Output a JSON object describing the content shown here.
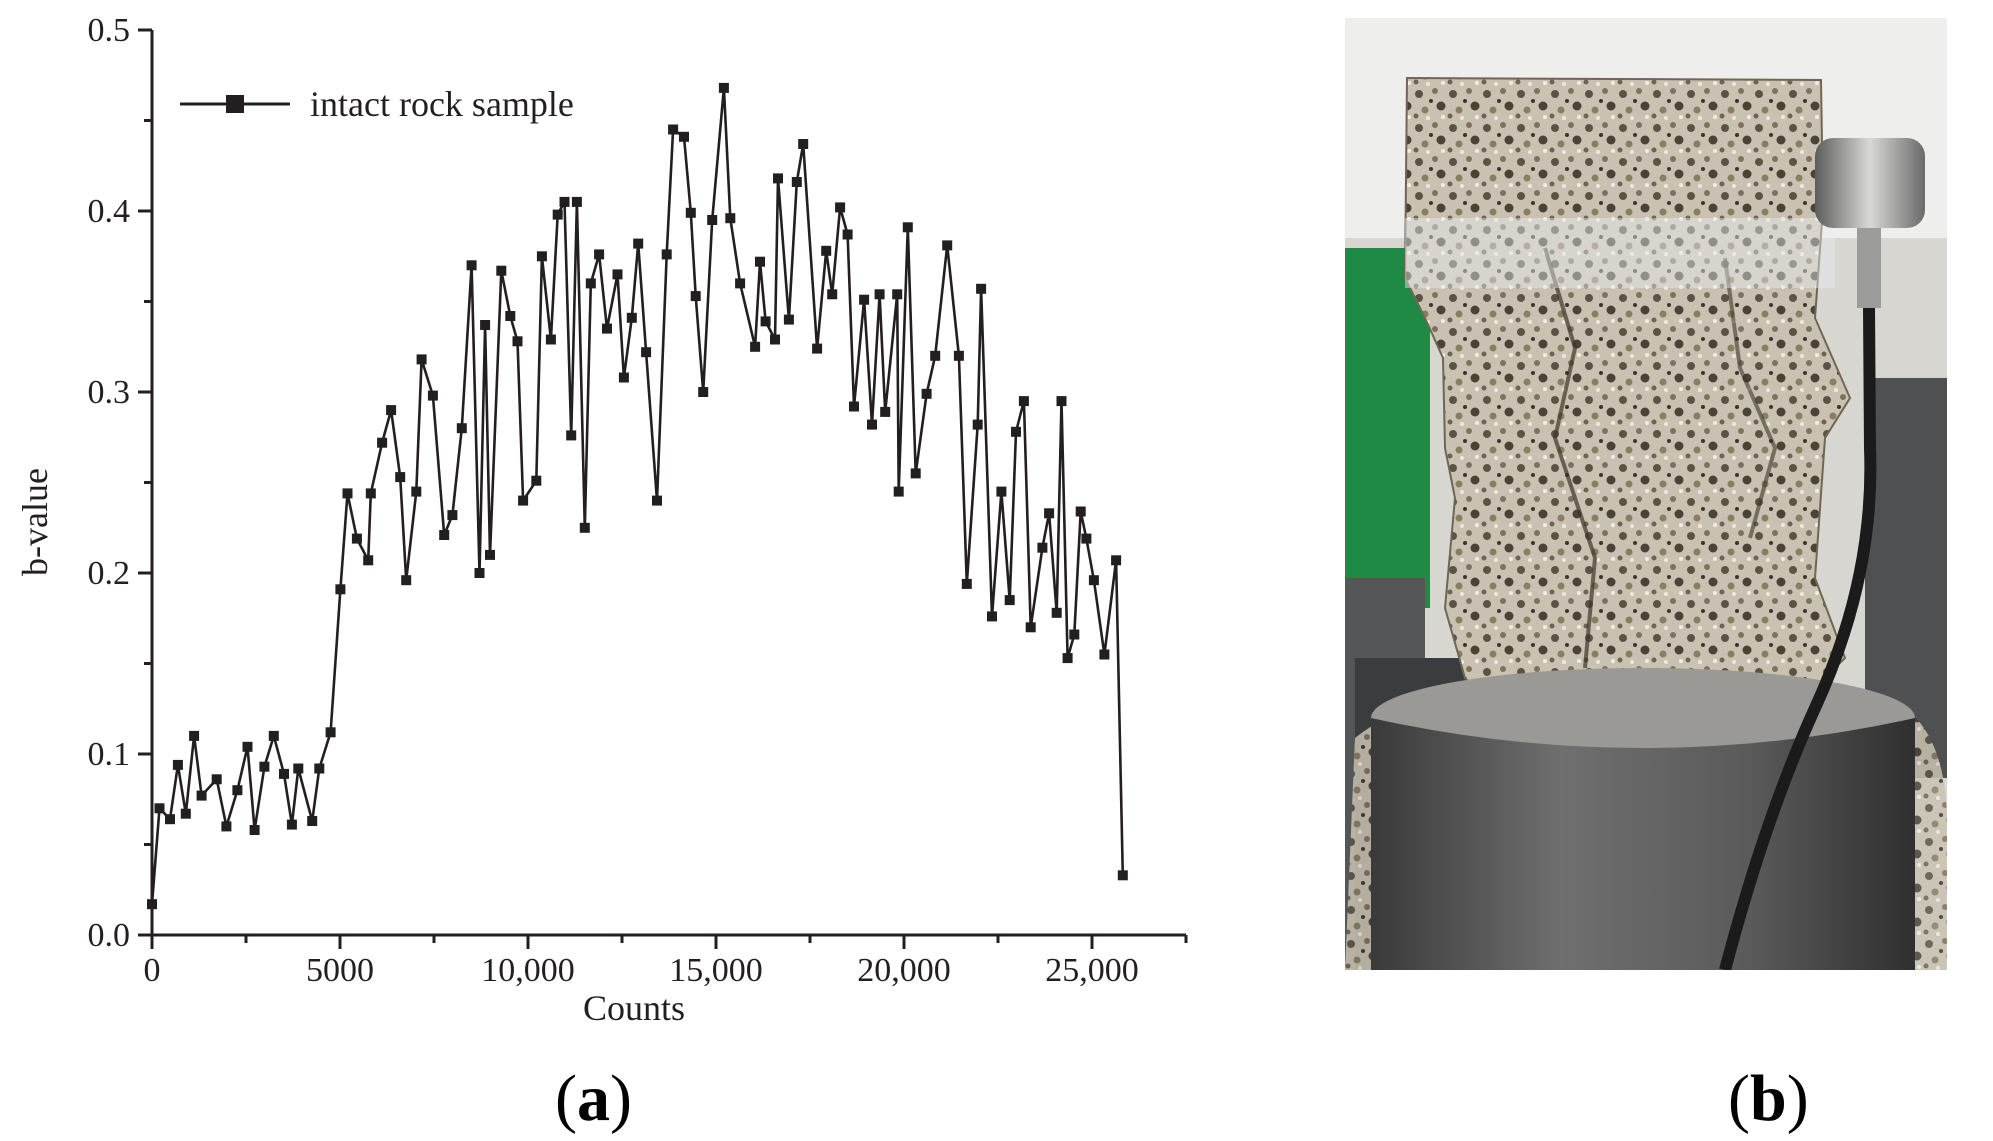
{
  "chart_data": {
    "type": "line",
    "title": "",
    "xlabel": "Counts",
    "ylabel": "b-value",
    "xlim": [
      0,
      27500
    ],
    "ylim": [
      0,
      0.5
    ],
    "x_ticks": [
      0,
      5000,
      10000,
      15000,
      20000,
      25000
    ],
    "x_tick_labels": [
      "0",
      "5000",
      "10,000",
      "15,000",
      "20,000",
      "25,000"
    ],
    "y_ticks": [
      0.0,
      0.1,
      0.2,
      0.3,
      0.4,
      0.5
    ],
    "y_tick_labels": [
      "0.0",
      "0.1",
      "0.2",
      "0.3",
      "0.4",
      "0.5"
    ],
    "grid": false,
    "legend_position": "top-left",
    "series": [
      {
        "name": "intact rock sample",
        "color": "#231f20",
        "marker": "square",
        "points": [
          [
            0,
            0.017
          ],
          [
            200,
            0.07
          ],
          [
            480,
            0.064
          ],
          [
            690,
            0.094
          ],
          [
            900,
            0.067
          ],
          [
            1120,
            0.11
          ],
          [
            1320,
            0.077
          ],
          [
            1720,
            0.086
          ],
          [
            1980,
            0.06
          ],
          [
            2270,
            0.08
          ],
          [
            2540,
            0.104
          ],
          [
            2730,
            0.058
          ],
          [
            2990,
            0.093
          ],
          [
            3240,
            0.11
          ],
          [
            3510,
            0.089
          ],
          [
            3720,
            0.061
          ],
          [
            3890,
            0.092
          ],
          [
            4260,
            0.063
          ],
          [
            4450,
            0.092
          ],
          [
            4750,
            0.112
          ],
          [
            5010,
            0.191
          ],
          [
            5200,
            0.244
          ],
          [
            5450,
            0.219
          ],
          [
            5750,
            0.207
          ],
          [
            5820,
            0.244
          ],
          [
            6120,
            0.272
          ],
          [
            6360,
            0.29
          ],
          [
            6600,
            0.253
          ],
          [
            6760,
            0.196
          ],
          [
            7030,
            0.245
          ],
          [
            7170,
            0.318
          ],
          [
            7470,
            0.298
          ],
          [
            7770,
            0.221
          ],
          [
            7990,
            0.232
          ],
          [
            8240,
            0.28
          ],
          [
            8500,
            0.37
          ],
          [
            8710,
            0.2
          ],
          [
            8860,
            0.337
          ],
          [
            8990,
            0.21
          ],
          [
            9290,
            0.367
          ],
          [
            9530,
            0.342
          ],
          [
            9720,
            0.328
          ],
          [
            9870,
            0.24
          ],
          [
            10220,
            0.251
          ],
          [
            10370,
            0.375
          ],
          [
            10610,
            0.329
          ],
          [
            10790,
            0.398
          ],
          [
            10970,
            0.405
          ],
          [
            11150,
            0.276
          ],
          [
            11300,
            0.405
          ],
          [
            11510,
            0.225
          ],
          [
            11670,
            0.36
          ],
          [
            11890,
            0.376
          ],
          [
            12100,
            0.335
          ],
          [
            12380,
            0.365
          ],
          [
            12550,
            0.308
          ],
          [
            12760,
            0.341
          ],
          [
            12930,
            0.382
          ],
          [
            13140,
            0.322
          ],
          [
            13430,
            0.24
          ],
          [
            13690,
            0.376
          ],
          [
            13860,
            0.445
          ],
          [
            14150,
            0.441
          ],
          [
            14330,
            0.399
          ],
          [
            14460,
            0.353
          ],
          [
            14660,
            0.3
          ],
          [
            14900,
            0.395
          ],
          [
            15210,
            0.468
          ],
          [
            15380,
            0.396
          ],
          [
            15640,
            0.36
          ],
          [
            16040,
            0.325
          ],
          [
            16170,
            0.372
          ],
          [
            16320,
            0.339
          ],
          [
            16570,
            0.329
          ],
          [
            16650,
            0.418
          ],
          [
            16940,
            0.34
          ],
          [
            17150,
            0.416
          ],
          [
            17320,
            0.437
          ],
          [
            17690,
            0.324
          ],
          [
            17930,
            0.378
          ],
          [
            18090,
            0.354
          ],
          [
            18300,
            0.402
          ],
          [
            18500,
            0.387
          ],
          [
            18670,
            0.292
          ],
          [
            18940,
            0.351
          ],
          [
            19150,
            0.282
          ],
          [
            19350,
            0.354
          ],
          [
            19500,
            0.289
          ],
          [
            19820,
            0.354
          ],
          [
            19860,
            0.245
          ],
          [
            20100,
            0.391
          ],
          [
            20310,
            0.255
          ],
          [
            20600,
            0.299
          ],
          [
            20830,
            0.32
          ],
          [
            21150,
            0.381
          ],
          [
            21460,
            0.32
          ],
          [
            21670,
            0.194
          ],
          [
            21960,
            0.282
          ],
          [
            22050,
            0.357
          ],
          [
            22340,
            0.176
          ],
          [
            22590,
            0.245
          ],
          [
            22810,
            0.185
          ],
          [
            22980,
            0.278
          ],
          [
            23190,
            0.295
          ],
          [
            23370,
            0.17
          ],
          [
            23680,
            0.214
          ],
          [
            23860,
            0.233
          ],
          [
            24060,
            0.178
          ],
          [
            24190,
            0.295
          ],
          [
            24350,
            0.153
          ],
          [
            24530,
            0.166
          ],
          [
            24700,
            0.234
          ],
          [
            24850,
            0.219
          ],
          [
            25050,
            0.196
          ],
          [
            25330,
            0.155
          ],
          [
            25640,
            0.207
          ],
          [
            25820,
            0.033
          ]
        ]
      }
    ]
  },
  "panel_labels": {
    "a": "a",
    "b": "b"
  },
  "photo": {
    "subject": "fractured-granite-rock-sample"
  }
}
